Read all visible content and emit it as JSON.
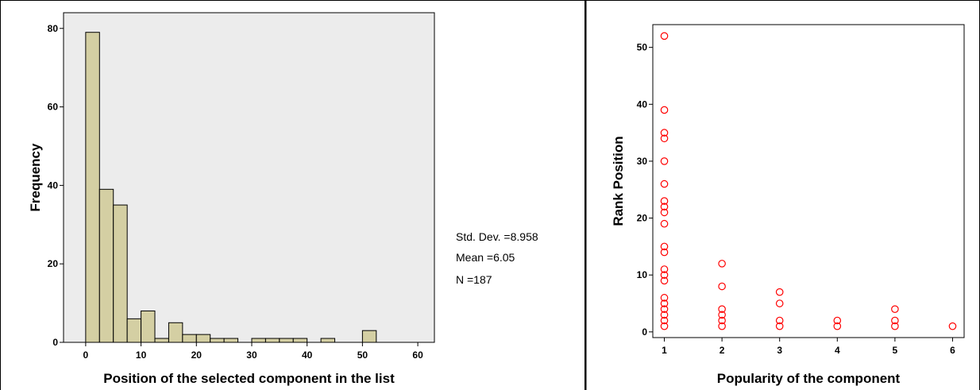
{
  "chart_data": [
    {
      "type": "bar",
      "title": "",
      "xlabel": "Position of the selected component in the list",
      "ylabel": "Frequency",
      "xlim": [
        -4,
        63
      ],
      "ylim": [
        0,
        84
      ],
      "bin_width": 2.5,
      "xticks": [
        0,
        10,
        20,
        30,
        40,
        50,
        60
      ],
      "yticks": [
        0,
        20,
        40,
        60,
        80
      ],
      "bins": [
        {
          "start": 0,
          "value": 79
        },
        {
          "start": 2.5,
          "value": 39
        },
        {
          "start": 5,
          "value": 35
        },
        {
          "start": 7.5,
          "value": 6
        },
        {
          "start": 10,
          "value": 8
        },
        {
          "start": 12.5,
          "value": 1
        },
        {
          "start": 15,
          "value": 5
        },
        {
          "start": 17.5,
          "value": 2
        },
        {
          "start": 20,
          "value": 2
        },
        {
          "start": 22.5,
          "value": 1
        },
        {
          "start": 25,
          "value": 1
        },
        {
          "start": 30,
          "value": 1
        },
        {
          "start": 32.5,
          "value": 1
        },
        {
          "start": 35,
          "value": 1
        },
        {
          "start": 37.5,
          "value": 1
        },
        {
          "start": 42.5,
          "value": 1
        },
        {
          "start": 50,
          "value": 3
        }
      ],
      "bar_color": "#d4cfa3",
      "plot_background": "#ececec",
      "stats": {
        "std_dev": "Std. Dev. =8.958",
        "mean": "Mean =6.05",
        "n": "N =187"
      }
    },
    {
      "type": "scatter",
      "title": "",
      "xlabel": "Popularity of the component",
      "ylabel": "Rank Position",
      "xlim": [
        0.8,
        6.2
      ],
      "ylim": [
        -1,
        54
      ],
      "xticks": [
        1,
        2,
        3,
        4,
        5,
        6
      ],
      "yticks": [
        0,
        10,
        20,
        30,
        40,
        50
      ],
      "marker_color": "#ff0000",
      "points": [
        [
          1,
          52
        ],
        [
          1,
          39
        ],
        [
          1,
          35
        ],
        [
          1,
          34
        ],
        [
          1,
          30
        ],
        [
          1,
          26
        ],
        [
          1,
          23
        ],
        [
          1,
          22
        ],
        [
          1,
          21
        ],
        [
          1,
          19
        ],
        [
          1,
          15
        ],
        [
          1,
          14
        ],
        [
          1,
          11
        ],
        [
          1,
          10
        ],
        [
          1,
          9
        ],
        [
          1,
          6
        ],
        [
          1,
          5
        ],
        [
          1,
          4
        ],
        [
          1,
          3
        ],
        [
          1,
          2
        ],
        [
          1,
          1
        ],
        [
          2,
          12
        ],
        [
          2,
          8
        ],
        [
          2,
          4
        ],
        [
          2,
          3
        ],
        [
          2,
          2
        ],
        [
          2,
          1
        ],
        [
          3,
          7
        ],
        [
          3,
          5
        ],
        [
          3,
          2
        ],
        [
          3,
          1
        ],
        [
          4,
          2
        ],
        [
          4,
          1
        ],
        [
          5,
          4
        ],
        [
          5,
          2
        ],
        [
          5,
          1
        ],
        [
          6,
          1
        ]
      ]
    }
  ]
}
